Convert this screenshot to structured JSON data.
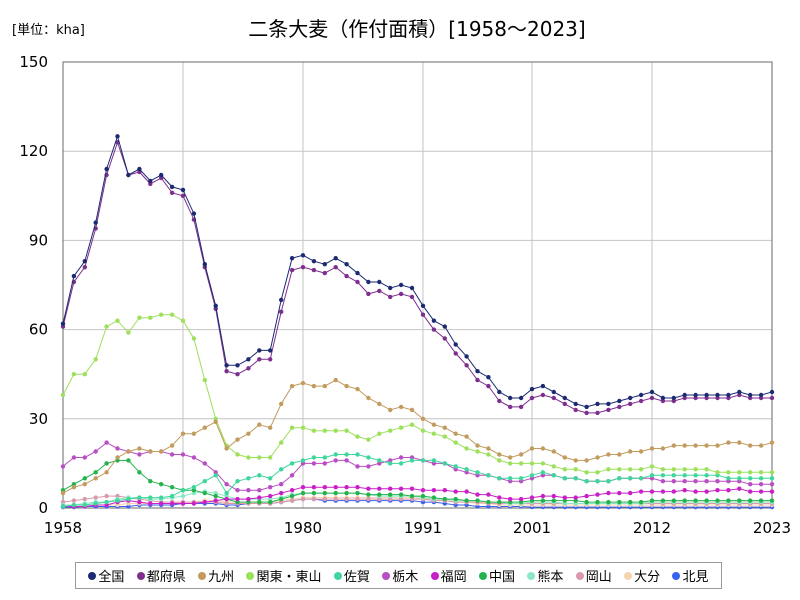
{
  "chart_data": {
    "type": "line",
    "title": "二条大麦（作付面積）[1958～2023]",
    "unit_label": "[単位：kha]",
    "xlim": [
      1958,
      2023
    ],
    "ylim": [
      0,
      150
    ],
    "x_ticks": [
      1958,
      1969,
      1980,
      1991,
      2001,
      2012,
      2023
    ],
    "y_ticks": [
      0,
      30,
      60,
      90,
      120,
      150
    ],
    "grid": true,
    "legend_position": "bottom",
    "x": [
      1958,
      1959,
      1960,
      1961,
      1962,
      1963,
      1964,
      1965,
      1966,
      1967,
      1968,
      1969,
      1970,
      1971,
      1972,
      1973,
      1974,
      1975,
      1976,
      1977,
      1978,
      1979,
      1980,
      1981,
      1982,
      1983,
      1984,
      1985,
      1986,
      1987,
      1988,
      1989,
      1990,
      1991,
      1992,
      1993,
      1994,
      1995,
      1996,
      1997,
      1998,
      1999,
      2000,
      2001,
      2002,
      2003,
      2004,
      2005,
      2006,
      2007,
      2008,
      2009,
      2010,
      2011,
      2012,
      2013,
      2014,
      2015,
      2016,
      2017,
      2018,
      2019,
      2020,
      2021,
      2022,
      2023
    ],
    "series": [
      {
        "name": "全国",
        "color": "#1c2a72",
        "values": [
          62,
          78,
          83,
          96,
          114,
          125,
          112,
          114,
          110,
          112,
          108,
          107,
          99,
          82,
          68,
          48,
          48,
          50,
          53,
          53,
          70,
          84,
          85,
          83,
          82,
          84,
          82,
          79,
          76,
          76,
          74,
          75,
          74,
          68,
          63,
          61,
          55,
          51,
          46,
          44,
          39,
          37,
          37,
          40,
          41,
          39,
          37,
          35,
          34,
          35,
          35,
          36,
          37,
          38,
          39,
          37,
          37,
          38,
          38,
          38,
          38,
          38,
          39,
          38,
          38,
          39
        ]
      },
      {
        "name": "都府県",
        "color": "#7d2f8e",
        "values": [
          61,
          76,
          81,
          94,
          112,
          123,
          112,
          113,
          109,
          111,
          106,
          105,
          97,
          81,
          67,
          46,
          45,
          47,
          50,
          50,
          66,
          80,
          81,
          80,
          79,
          81,
          78,
          76,
          72,
          73,
          71,
          72,
          71,
          65,
          60,
          57,
          52,
          48,
          43,
          41,
          36,
          34,
          34,
          37,
          38,
          37,
          35,
          33,
          32,
          32,
          33,
          34,
          35,
          36,
          37,
          36,
          36,
          37,
          37,
          37,
          37,
          37,
          38,
          37,
          37,
          37
        ]
      },
      {
        "name": "九州",
        "color": "#c29b5e",
        "values": [
          5,
          7,
          8,
          10,
          12,
          17,
          19,
          20,
          19,
          19,
          21,
          25,
          25,
          27,
          29,
          20,
          23,
          25,
          28,
          27,
          35,
          41,
          42,
          41,
          41,
          43,
          41,
          40,
          37,
          35,
          33,
          34,
          33,
          30,
          28,
          27,
          25,
          24,
          21,
          20,
          18,
          17,
          18,
          20,
          20,
          19,
          17,
          16,
          16,
          17,
          18,
          18,
          19,
          19,
          20,
          20,
          21,
          21,
          21,
          21,
          21,
          22,
          22,
          21,
          21,
          22
        ]
      },
      {
        "name": "関東・東山",
        "color": "#9de05c",
        "values": [
          38,
          45,
          45,
          50,
          61,
          63,
          59,
          64,
          64,
          65,
          65,
          63,
          57,
          43,
          30,
          21,
          18,
          17,
          17,
          17,
          22,
          27,
          27,
          26,
          26,
          26,
          26,
          24,
          23,
          25,
          26,
          27,
          28,
          26,
          25,
          24,
          22,
          20,
          19,
          18,
          16,
          15,
          15,
          15,
          15,
          14,
          13,
          13,
          12,
          12,
          13,
          13,
          13,
          13,
          14,
          13,
          13,
          13,
          13,
          13,
          12,
          12,
          12,
          12,
          12,
          12
        ]
      },
      {
        "name": "佐賀",
        "color": "#3ed69c",
        "values": [
          0.5,
          1,
          1,
          1.5,
          2,
          2.5,
          3,
          3.5,
          3.5,
          3.5,
          4,
          6,
          7,
          9,
          11,
          5,
          9,
          10,
          11,
          10,
          13,
          15,
          16,
          17,
          17,
          18,
          18,
          18,
          17,
          16,
          15,
          15,
          16,
          16,
          16,
          15,
          14,
          13,
          12,
          11,
          10,
          10,
          10,
          11,
          12,
          11,
          10,
          10,
          9,
          9,
          9,
          10,
          10,
          10,
          11,
          11,
          11,
          11,
          11,
          11,
          11,
          10,
          10,
          10,
          10,
          10
        ]
      },
      {
        "name": "栃木",
        "color": "#b94dc4",
        "values": [
          14,
          17,
          17,
          19,
          22,
          20,
          19,
          18,
          19,
          19,
          18,
          18,
          17,
          15,
          12,
          8,
          6,
          6,
          6,
          7,
          8,
          11,
          15,
          15,
          15,
          16,
          16,
          14,
          14,
          15,
          16,
          17,
          17,
          16,
          15,
          15,
          13,
          12,
          11,
          11,
          10,
          9,
          9,
          10,
          11,
          11,
          10,
          10,
          9,
          9,
          9,
          10,
          10,
          10,
          10,
          9,
          9,
          9,
          9,
          9,
          9,
          9,
          9,
          8,
          8,
          8
        ]
      },
      {
        "name": "福岡",
        "color": "#c81fc8",
        "values": [
          0.5,
          0.5,
          0.5,
          1,
          1,
          2,
          2.5,
          2,
          1.5,
          1.5,
          1.5,
          1.5,
          1.5,
          2,
          2.5,
          3,
          3,
          3,
          3.5,
          4,
          5,
          6,
          7,
          7,
          7,
          7,
          7,
          7,
          6.5,
          6.5,
          6.5,
          6.5,
          6.5,
          6,
          6,
          6,
          5.5,
          5.5,
          4.5,
          4.5,
          3.5,
          3,
          3,
          3.5,
          4,
          4,
          3.5,
          3.5,
          4,
          4.5,
          5,
          5,
          5,
          5.5,
          5.5,
          5.5,
          5.5,
          6,
          5.5,
          5.5,
          6,
          6,
          6.5,
          5.5,
          5.5,
          5.5
        ]
      },
      {
        "name": "中国",
        "color": "#24b24c",
        "values": [
          6,
          8,
          10,
          12,
          15,
          16,
          16,
          12,
          9,
          8,
          7,
          6,
          6,
          5,
          4,
          3,
          2,
          2,
          2,
          2,
          3,
          4,
          5,
          5,
          5,
          5,
          5,
          5,
          4.5,
          4.5,
          4.5,
          4.5,
          4,
          4,
          3.5,
          3,
          3,
          2.5,
          2.5,
          2,
          2,
          2,
          2,
          2.5,
          2.5,
          2.5,
          2.5,
          2.5,
          2,
          2,
          2,
          2,
          2,
          2,
          2.5,
          2.5,
          2.5,
          2.5,
          2.5,
          2.5,
          2.5,
          2.5,
          2.5,
          2.5,
          2.5,
          2.5
        ]
      },
      {
        "name": "熊本",
        "color": "#8ce8c4",
        "values": [
          1,
          1,
          1.5,
          2,
          2,
          3,
          3.5,
          3.5,
          3,
          3,
          3.5,
          4,
          5,
          5.5,
          5,
          4,
          3,
          3,
          3,
          3,
          3.5,
          4.5,
          5,
          5,
          5,
          5,
          5,
          5,
          4.5,
          4,
          4,
          4,
          4,
          3.5,
          3,
          3,
          2.5,
          2.5,
          2.5,
          2,
          2,
          1.5,
          1.5,
          2,
          2,
          2,
          1.5,
          1.5,
          1.5,
          1.5,
          1.5,
          1.5,
          1.5,
          1.5,
          2,
          2,
          2,
          2,
          2,
          2,
          2,
          2,
          2,
          2,
          2,
          2
        ]
      },
      {
        "name": "岡山",
        "color": "#d99aaa",
        "values": [
          2,
          2.5,
          3,
          3.5,
          4,
          4,
          3.5,
          3,
          2.5,
          2,
          2,
          2,
          2,
          2,
          2,
          1.5,
          1.5,
          1.5,
          1.5,
          1.5,
          2,
          2.5,
          3,
          3,
          3,
          3,
          3,
          3,
          3,
          3,
          3,
          3,
          3,
          3,
          2.5,
          2.5,
          2,
          2,
          2,
          1.5,
          1.5,
          1.5,
          1.5,
          1.5,
          1.5,
          1.5,
          1.5,
          1.5,
          1.5,
          1.5,
          1.5,
          1.5,
          1.5,
          1.5,
          1.5,
          1.5,
          1.5,
          1.5,
          1.5,
          1.5,
          1.5,
          1.5,
          1.5,
          1.5,
          1.5,
          1.5
        ]
      },
      {
        "name": "大分",
        "color": "#f5d2b0",
        "values": [
          0.5,
          0.5,
          0.5,
          1,
          1,
          1,
          1.5,
          1.5,
          1.5,
          1.5,
          1.5,
          2,
          2,
          2.5,
          2.5,
          2,
          2,
          2,
          2,
          2,
          2.5,
          3,
          3.5,
          3.5,
          3.5,
          3.5,
          3.5,
          3.5,
          3.5,
          3.5,
          3.5,
          3.5,
          3.5,
          3,
          3,
          2.5,
          2,
          2,
          1.5,
          1.5,
          1,
          1,
          1,
          1,
          1,
          1,
          1,
          1,
          1,
          1,
          1,
          1,
          1,
          1,
          1,
          1,
          1,
          1,
          1,
          1,
          1,
          1,
          1,
          1,
          1,
          1
        ]
      },
      {
        "name": "北見",
        "color": "#3a62f2",
        "values": [
          0.3,
          0.3,
          0.5,
          0.5,
          0.5,
          0.5,
          0.5,
          1,
          1,
          1,
          1,
          1.5,
          1.5,
          1.5,
          1.5,
          1,
          1,
          1.5,
          1.5,
          1.5,
          2,
          2.5,
          3,
          3,
          2.5,
          2.5,
          2.5,
          2.5,
          2.5,
          2.5,
          2.5,
          2.5,
          2.5,
          2,
          2,
          1.5,
          1,
          1,
          0.5,
          0.5,
          0.5,
          0.5,
          0.5,
          0.3,
          0.3,
          0.3,
          0.3,
          0.3,
          0.3,
          0.3,
          0.3,
          0.3,
          0.3,
          0.3,
          0.3,
          0.3,
          0.3,
          0.3,
          0.3,
          0.3,
          0.3,
          0.3,
          0.3,
          0.3,
          0.3,
          0.3
        ]
      }
    ]
  }
}
